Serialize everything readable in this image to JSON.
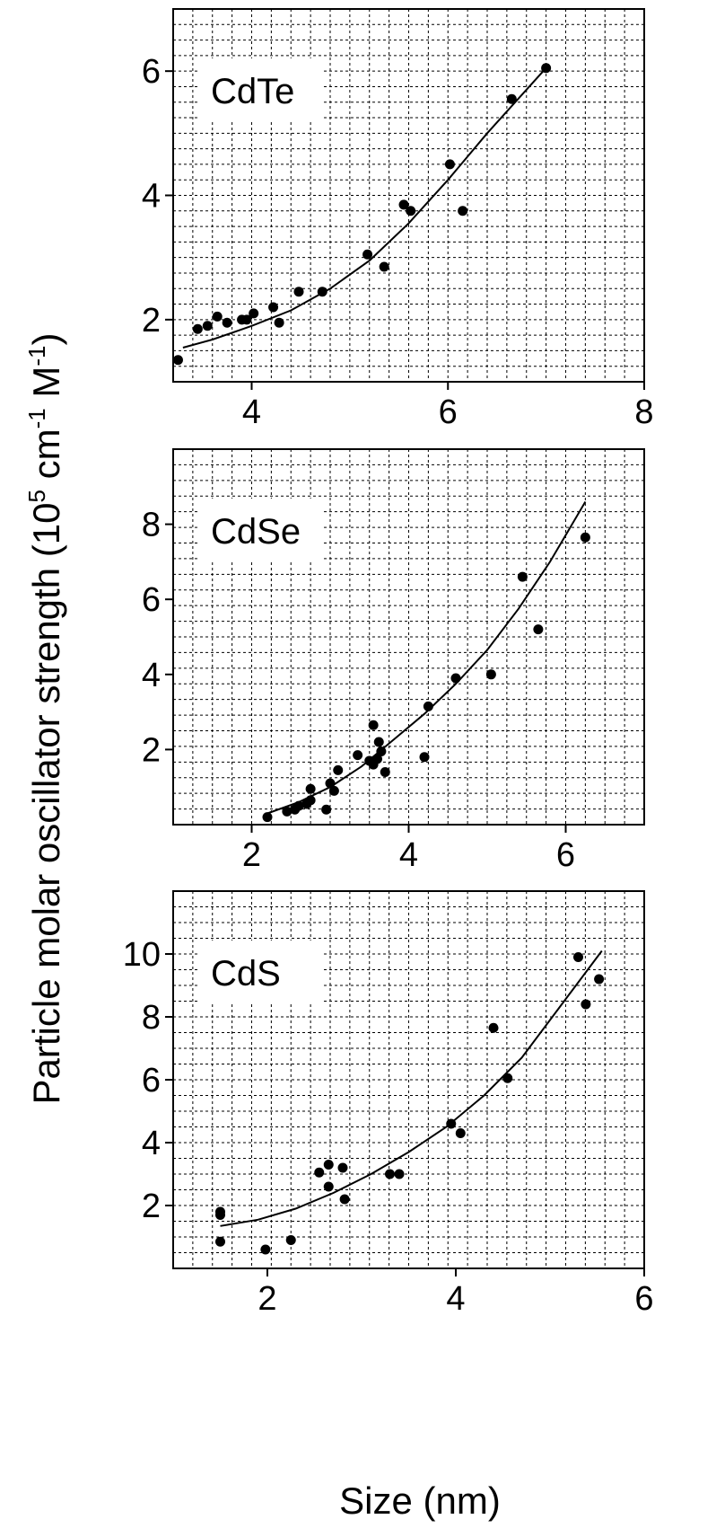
{
  "figure": {
    "ylabel_main": "Particle molar oscillator strength (10",
    "ylabel_exp1": "5",
    "ylabel_mid": " cm",
    "ylabel_exp2": "-1",
    "ylabel_tail": " M",
    "ylabel_exp3": "-1",
    "ylabel_close": ")",
    "xlabel": "Size (nm)"
  },
  "chart_data": [
    {
      "type": "scatter",
      "label": "CdTe",
      "xlim": [
        3.2,
        8
      ],
      "ylim": [
        1,
        7
      ],
      "xticks": [
        4,
        6,
        8
      ],
      "yticks": [
        2,
        4,
        6
      ],
      "grid": true,
      "points": [
        [
          3.25,
          1.35
        ],
        [
          3.45,
          1.85
        ],
        [
          3.55,
          1.9
        ],
        [
          3.65,
          2.05
        ],
        [
          3.75,
          1.95
        ],
        [
          3.9,
          2.0
        ],
        [
          3.95,
          2.0
        ],
        [
          4.02,
          2.1
        ],
        [
          4.22,
          2.2
        ],
        [
          4.28,
          1.95
        ],
        [
          4.48,
          2.45
        ],
        [
          4.72,
          2.45
        ],
        [
          5.18,
          3.05
        ],
        [
          5.35,
          2.85
        ],
        [
          5.55,
          3.85
        ],
        [
          5.62,
          3.75
        ],
        [
          6.02,
          4.5
        ],
        [
          6.15,
          3.75
        ],
        [
          6.65,
          5.55
        ],
        [
          7.0,
          6.05
        ]
      ],
      "fit": [
        [
          3.3,
          1.55
        ],
        [
          3.6,
          1.68
        ],
        [
          4.0,
          1.9
        ],
        [
          4.4,
          2.15
        ],
        [
          4.8,
          2.5
        ],
        [
          5.2,
          2.95
        ],
        [
          5.6,
          3.55
        ],
        [
          6.0,
          4.25
        ],
        [
          6.4,
          5.0
        ],
        [
          7.0,
          6.05
        ]
      ]
    },
    {
      "type": "scatter",
      "label": "CdSe",
      "xlim": [
        1.0,
        7.0
      ],
      "ylim": [
        0,
        10
      ],
      "xticks": [
        2,
        4,
        6
      ],
      "yticks": [
        2,
        4,
        6,
        8
      ],
      "grid": true,
      "points": [
        [
          2.2,
          0.2
        ],
        [
          2.45,
          0.35
        ],
        [
          2.55,
          0.4
        ],
        [
          2.6,
          0.5
        ],
        [
          2.7,
          0.55
        ],
        [
          2.75,
          0.65
        ],
        [
          2.75,
          0.95
        ],
        [
          2.95,
          0.4
        ],
        [
          3.0,
          1.1
        ],
        [
          3.05,
          0.9
        ],
        [
          3.1,
          1.45
        ],
        [
          3.35,
          1.85
        ],
        [
          3.5,
          1.7
        ],
        [
          3.55,
          1.6
        ],
        [
          3.55,
          2.65
        ],
        [
          3.6,
          1.75
        ],
        [
          3.62,
          2.2
        ],
        [
          3.65,
          1.95
        ],
        [
          3.7,
          1.4
        ],
        [
          4.2,
          1.8
        ],
        [
          4.25,
          3.15
        ],
        [
          4.6,
          3.9
        ],
        [
          5.05,
          4.0
        ],
        [
          5.45,
          6.6
        ],
        [
          5.65,
          5.2
        ],
        [
          6.25,
          7.65
        ]
      ],
      "fit": [
        [
          2.2,
          0.3
        ],
        [
          2.6,
          0.6
        ],
        [
          3.0,
          1.0
        ],
        [
          3.4,
          1.55
        ],
        [
          3.8,
          2.25
        ],
        [
          4.2,
          2.95
        ],
        [
          4.6,
          3.75
        ],
        [
          5.0,
          4.65
        ],
        [
          5.4,
          5.75
        ],
        [
          5.8,
          7.0
        ],
        [
          6.25,
          8.6
        ]
      ]
    },
    {
      "type": "scatter",
      "label": "CdS",
      "xlim": [
        1.0,
        6.0
      ],
      "ylim": [
        0,
        12
      ],
      "xticks": [
        2,
        4,
        6
      ],
      "yticks": [
        2,
        4,
        6,
        8,
        10
      ],
      "grid": true,
      "points": [
        [
          1.5,
          1.7
        ],
        [
          1.5,
          1.8
        ],
        [
          1.5,
          0.85
        ],
        [
          1.98,
          0.6
        ],
        [
          2.25,
          0.9
        ],
        [
          2.55,
          3.05
        ],
        [
          2.65,
          2.6
        ],
        [
          2.65,
          3.3
        ],
        [
          2.8,
          3.2
        ],
        [
          2.82,
          2.2
        ],
        [
          3.3,
          3.0
        ],
        [
          3.4,
          3.0
        ],
        [
          3.95,
          4.6
        ],
        [
          4.05,
          4.3
        ],
        [
          4.4,
          7.65
        ],
        [
          4.55,
          6.05
        ],
        [
          5.3,
          9.9
        ],
        [
          5.38,
          8.4
        ],
        [
          5.52,
          9.2
        ]
      ],
      "fit": [
        [
          1.5,
          1.35
        ],
        [
          1.9,
          1.55
        ],
        [
          2.3,
          1.9
        ],
        [
          2.7,
          2.4
        ],
        [
          3.1,
          3.0
        ],
        [
          3.5,
          3.7
        ],
        [
          3.9,
          4.5
        ],
        [
          4.3,
          5.5
        ],
        [
          4.7,
          6.7
        ],
        [
          5.1,
          8.3
        ],
        [
          5.55,
          10.1
        ]
      ]
    }
  ]
}
